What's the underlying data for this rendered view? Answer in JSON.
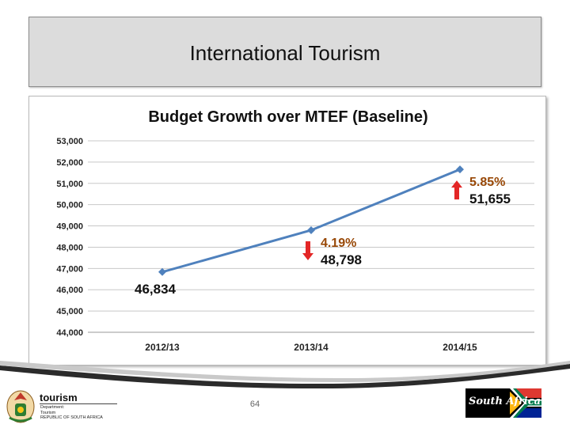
{
  "slide": {
    "title": "International Tourism",
    "page_number": "64"
  },
  "footer": {
    "left_logo": {
      "wordmark": "tourism",
      "lines": [
        "Department:",
        "Tourism",
        "REPUBLIC OF SOUTH AFRICA"
      ]
    },
    "right_logo": {
      "wordmark": "South Africa",
      "colors": [
        "#000000",
        "#007a4d",
        "#ffb612",
        "#de3831",
        "#002395",
        "#ffffff"
      ]
    }
  },
  "chart_data": {
    "type": "line",
    "title": "Budget Growth over MTEF (Baseline)",
    "categories": [
      "2012/13",
      "2013/14",
      "2014/15"
    ],
    "series": [
      {
        "values": [
          46834,
          48798,
          51655
        ],
        "color": "#4f81bd"
      }
    ],
    "data_labels": [
      "46,834",
      "48,798",
      "51,655"
    ],
    "growth_labels": [
      "",
      "4.19%",
      "5.85%"
    ],
    "growth_color": "#984807",
    "arrow_color": "#e32626",
    "arrow_directions": [
      "",
      "down",
      "up"
    ],
    "ylim": [
      44000,
      53000
    ],
    "yticks": [
      44000,
      45000,
      46000,
      47000,
      48000,
      49000,
      50000,
      51000,
      52000,
      53000
    ],
    "ytick_labels": [
      "44,000",
      "45,000",
      "46,000",
      "47,000",
      "48,000",
      "49,000",
      "50,000",
      "51,000",
      "52,000",
      "53,000"
    ],
    "grid": true,
    "legend": false
  }
}
